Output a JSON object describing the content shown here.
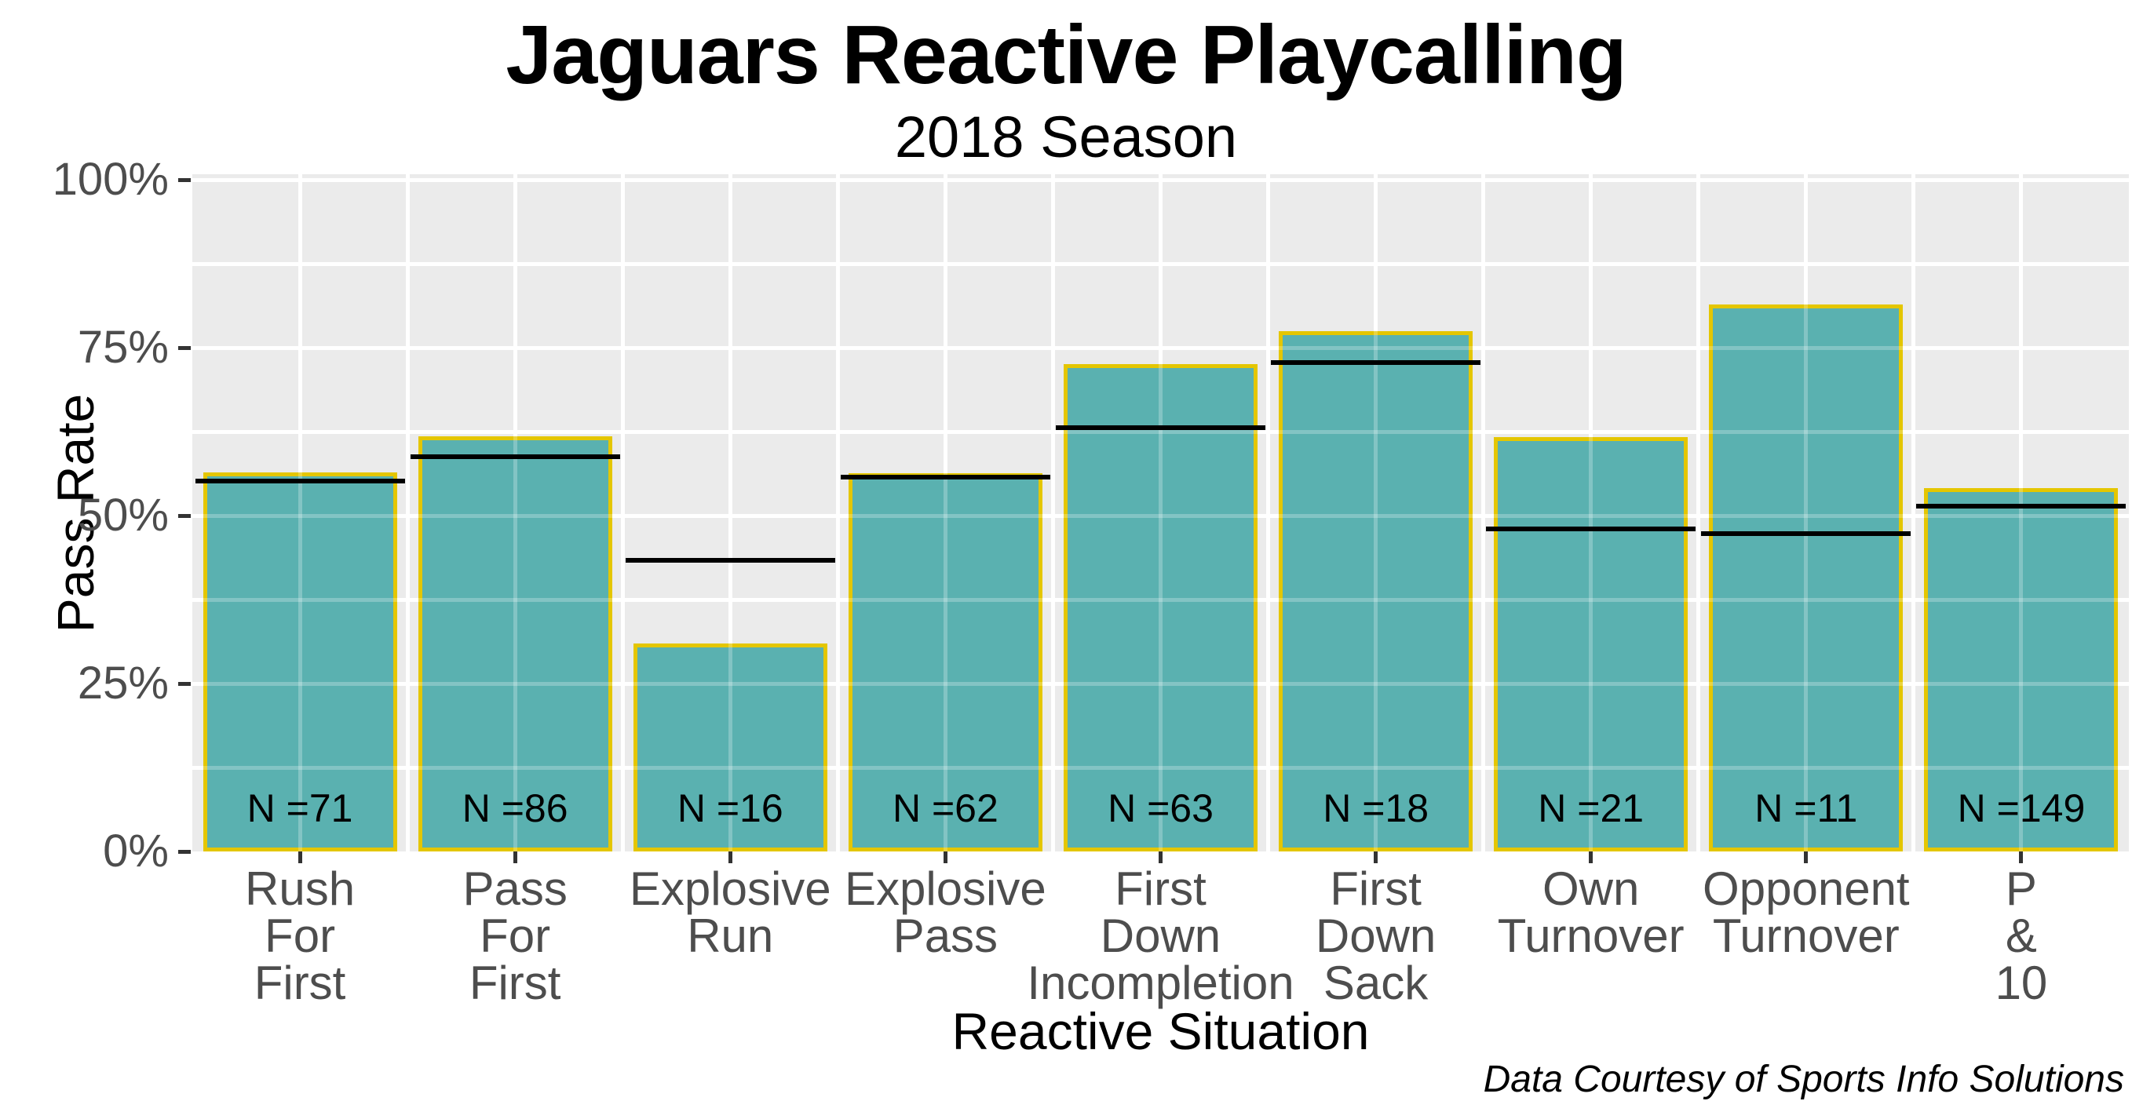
{
  "header": {
    "title": "Jaguars Reactive Playcalling",
    "subtitle": "2018 Season"
  },
  "caption": "Data Courtesy of Sports Info Solutions",
  "chart_data": {
    "type": "bar",
    "title": "Jaguars Reactive Playcalling",
    "subtitle": "2018 Season",
    "xlabel": "Reactive Situation",
    "ylabel": "Pass Rate",
    "ylim": [
      0,
      100
    ],
    "grid": "white major (25%) and minor (12.5%) horizontal gridlines plus vertical category gridlines on light-gray panel",
    "legend_position": "none",
    "yticks": [
      {
        "value": 0,
        "label": "0%"
      },
      {
        "value": 25,
        "label": "25%"
      },
      {
        "value": 50,
        "label": "50%"
      },
      {
        "value": 75,
        "label": "75%"
      },
      {
        "value": 100,
        "label": "100%"
      }
    ],
    "categories": [
      {
        "name": "Rush For First",
        "label": "Rush\nFor\nFirst",
        "pass_rate": 56.4,
        "reference_line": 55.1,
        "n_label": "N =71"
      },
      {
        "name": "Pass For First",
        "label": "Pass\nFor\nFirst",
        "pass_rate": 61.8,
        "reference_line": 58.8,
        "n_label": "N =86"
      },
      {
        "name": "Explosive Run",
        "label": "Explosive\nRun",
        "pass_rate": 31.0,
        "reference_line": 43.3,
        "n_label": "N =16"
      },
      {
        "name": "Explosive Pass",
        "label": "Explosive\nPass",
        "pass_rate": 56.3,
        "reference_line": 55.7,
        "n_label": "N =62"
      },
      {
        "name": "First Down Incompletion",
        "label": "First\nDown\nIncompletion",
        "pass_rate": 72.6,
        "reference_line": 63.1,
        "n_label": "N =63"
      },
      {
        "name": "First Down Sack",
        "label": "First\nDown\nSack",
        "pass_rate": 77.5,
        "reference_line": 72.8,
        "n_label": "N =18"
      },
      {
        "name": "Own Turnover",
        "label": "Own\nTurnover",
        "pass_rate": 61.7,
        "reference_line": 48.0,
        "n_label": "N =21"
      },
      {
        "name": "Opponent Turnover",
        "label": "Opponent\nTurnover",
        "pass_rate": 81.4,
        "reference_line": 47.3,
        "n_label": "N =11"
      },
      {
        "name": "P & 10",
        "label": "P\n&\n10",
        "pass_rate": 54.1,
        "reference_line": 51.4,
        "n_label": "N =149"
      }
    ],
    "series": [
      {
        "name": "pass_rate_bars",
        "values": [
          56.4,
          61.8,
          31.0,
          56.3,
          72.6,
          77.5,
          61.7,
          81.4,
          54.1
        ]
      },
      {
        "name": "reference_lines",
        "values": [
          55.1,
          58.8,
          43.3,
          55.7,
          63.1,
          72.8,
          48.0,
          47.3,
          51.4
        ]
      }
    ],
    "colors": {
      "bar_fill": "#5AB1B0",
      "bar_border": "#E4C600",
      "reference_line": "#000000",
      "panel_background": "#EBEBEB",
      "gridline": "#FFFFFF",
      "axis_text": "#4D4D4D",
      "title_text": "#000000"
    }
  }
}
